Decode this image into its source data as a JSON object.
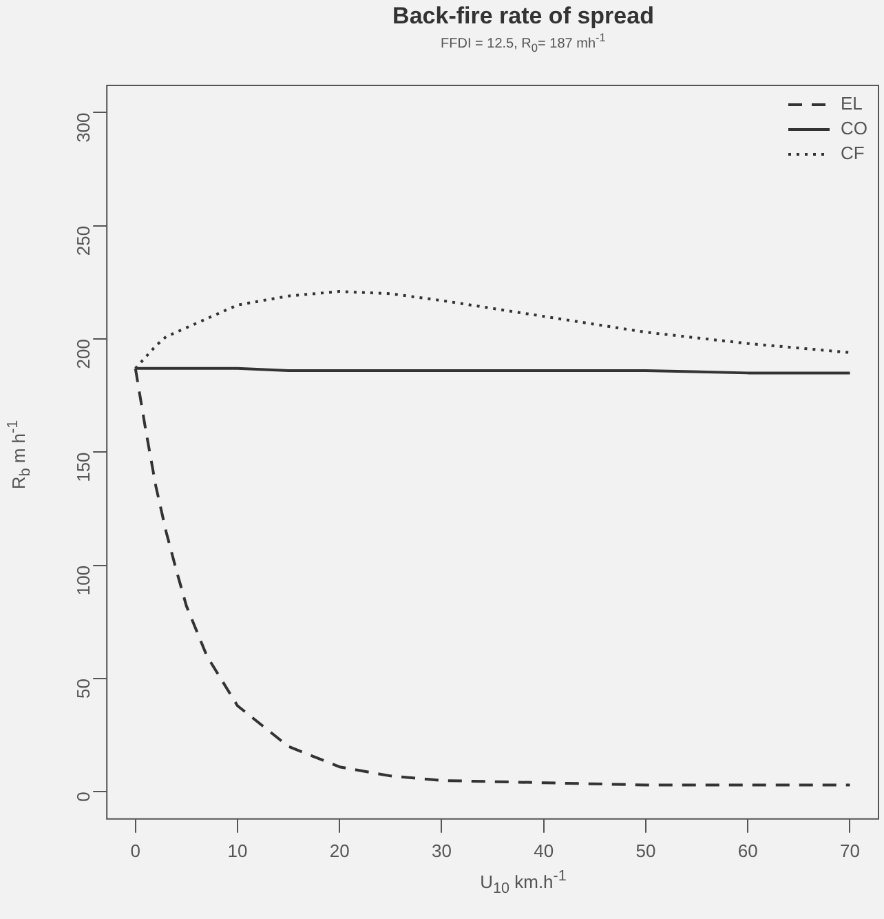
{
  "chart_data": {
    "type": "line",
    "title": "Back-fire rate of spread",
    "subtitle": "FFDI = 12.5, R$_{0}$= 187 mh$^{-1}$",
    "xlabel": "U$_{10}$ km.h$^{-1}$",
    "ylabel": "R$_{b}$ m h$^{-1}$",
    "x": [
      0,
      1,
      2,
      3,
      4,
      5,
      7,
      10,
      15,
      20,
      25,
      30,
      40,
      50,
      60,
      70
    ],
    "series": [
      {
        "name": "EL",
        "color": "#333333",
        "line_style": "dashed",
        "values": [
          187,
          160,
          135,
          115,
          98,
          82,
          60,
          38,
          20,
          11,
          7,
          5,
          4,
          3,
          3,
          3
        ]
      },
      {
        "name": "CO",
        "color": "#333333",
        "line_style": "solid",
        "values": [
          187,
          187,
          187,
          187,
          187,
          187,
          187,
          187,
          186,
          186,
          186,
          186,
          186,
          186,
          185,
          185
        ]
      },
      {
        "name": "CF",
        "color": "#333333",
        "line_style": "dotted",
        "values": [
          187,
          192,
          197,
          201,
          203,
          205,
          209,
          215,
          219,
          221,
          220,
          217,
          210,
          203,
          198,
          194
        ]
      }
    ],
    "xlim": [
      -2.8,
      72.8
    ],
    "ylim": [
      -12,
      312
    ],
    "xticks": [
      0,
      10,
      20,
      30,
      40,
      50,
      60,
      70
    ],
    "yticks": [
      0,
      50,
      100,
      150,
      200,
      250,
      300
    ],
    "grid": false,
    "legend": "top right",
    "marker": "none"
  }
}
